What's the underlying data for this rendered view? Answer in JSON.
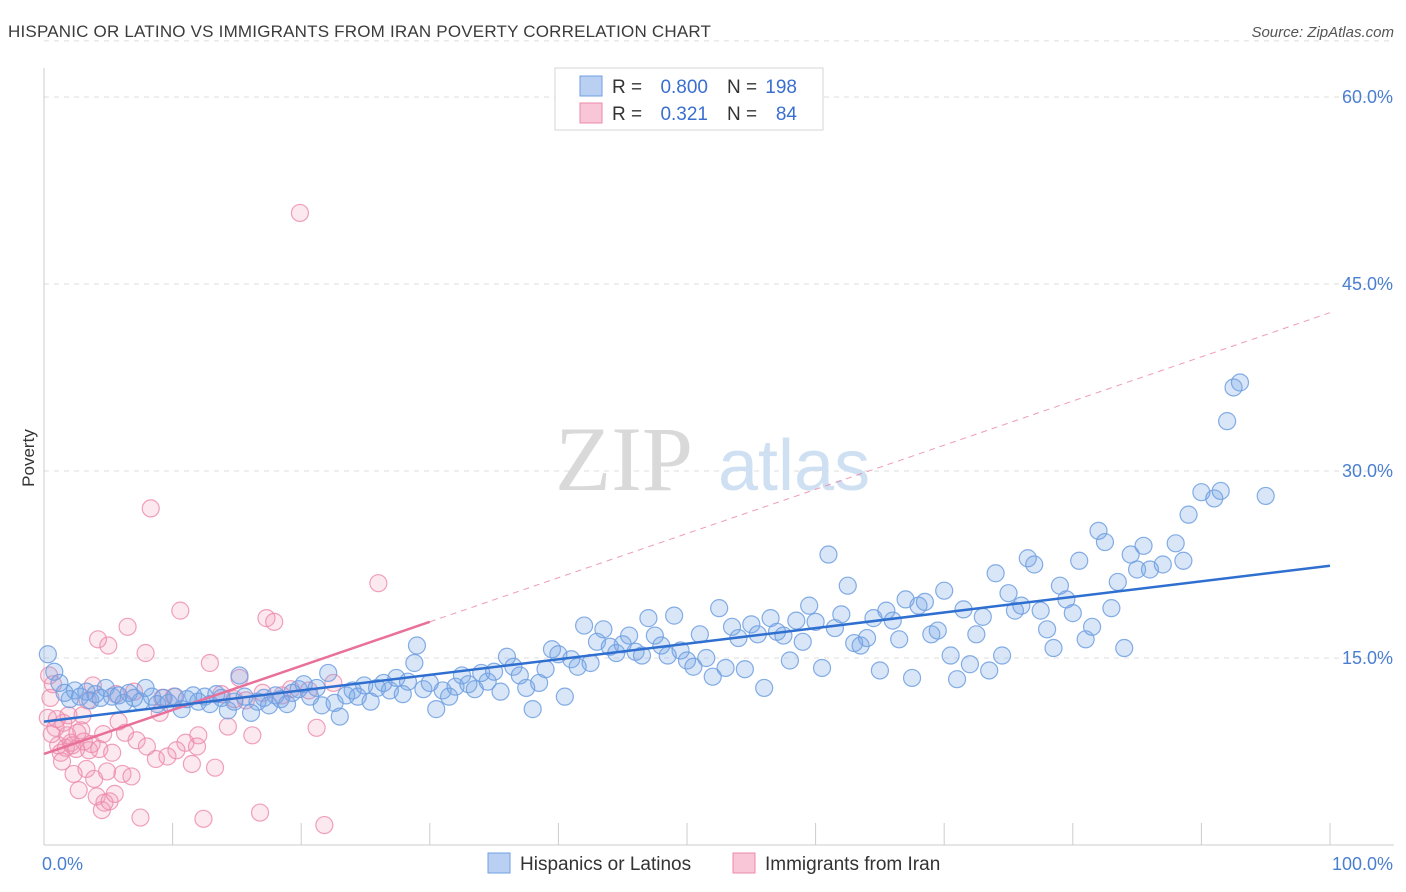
{
  "title": "HISPANIC OR LATINO VS IMMIGRANTS FROM IRAN POVERTY CORRELATION CHART",
  "source": "Source: ZipAtlas.com",
  "watermark": {
    "zip": "ZIP",
    "atlas": "atlas"
  },
  "colors": {
    "blue": "#6f9fe0",
    "blue_fill": "rgba(120,165,230,0.28)",
    "blue_line": "#2f6fd0",
    "pink": "#ec8aaa",
    "pink_fill": "rgba(240,150,180,0.22)",
    "pink_line": "#e8709a",
    "grid": "#dedede",
    "tick_text": "#4a7fd0"
  },
  "legend": {
    "rows": [
      {
        "r_label": "R =",
        "r_value": "0.800",
        "n_label": "N =",
        "n_value": "198",
        "color": "blue"
      },
      {
        "r_label": "R =",
        "r_value": "0.321",
        "n_label": "N =",
        "n_value": "84",
        "color": "pink"
      }
    ]
  },
  "chart_data": {
    "type": "scatter",
    "title": "HISPANIC OR LATINO VS IMMIGRANTS FROM IRAN POVERTY CORRELATION CHART",
    "xlabel": "",
    "ylabel": "Poverty",
    "xlim": [
      0,
      100
    ],
    "ylim": [
      0,
      65
    ],
    "x_tick_labels": [
      "0.0%",
      "100.0%"
    ],
    "y_ticks": [
      15,
      30,
      45,
      60
    ],
    "y_tick_labels": [
      "15.0%",
      "30.0%",
      "45.0%",
      "60.0%"
    ],
    "grid": true,
    "legend_position": "top-center",
    "series": [
      {
        "name": "Hispanics or Latinos",
        "color": "blue",
        "trend": {
          "x": [
            0,
            100
          ],
          "y": [
            9.9,
            22.4
          ],
          "style": "solid"
        },
        "points": [
          [
            0.3,
            15.3
          ],
          [
            0.8,
            13.9
          ],
          [
            1.2,
            13.0
          ],
          [
            1.6,
            12.2
          ],
          [
            2.0,
            11.7
          ],
          [
            2.4,
            12.4
          ],
          [
            2.8,
            11.9
          ],
          [
            3.3,
            12.3
          ],
          [
            3.6,
            11.6
          ],
          [
            4.0,
            12.1
          ],
          [
            4.4,
            11.8
          ],
          [
            4.8,
            12.6
          ],
          [
            5.3,
            11.9
          ],
          [
            5.8,
            12.0
          ],
          [
            6.2,
            11.4
          ],
          [
            6.6,
            12.2
          ],
          [
            7.0,
            11.8
          ],
          [
            7.5,
            11.5
          ],
          [
            7.9,
            12.6
          ],
          [
            8.4,
            11.9
          ],
          [
            8.8,
            11.3
          ],
          [
            9.3,
            11.8
          ],
          [
            9.7,
            11.4
          ],
          [
            10.2,
            11.9
          ],
          [
            10.7,
            10.9
          ],
          [
            11.1,
            11.7
          ],
          [
            11.6,
            12.0
          ],
          [
            12.0,
            11.5
          ],
          [
            12.5,
            11.9
          ],
          [
            12.9,
            11.3
          ],
          [
            13.4,
            12.1
          ],
          [
            13.8,
            11.8
          ],
          [
            14.3,
            10.8
          ],
          [
            14.8,
            11.5
          ],
          [
            15.2,
            13.6
          ],
          [
            15.6,
            11.9
          ],
          [
            16.1,
            10.6
          ],
          [
            16.6,
            11.5
          ],
          [
            17.1,
            11.8
          ],
          [
            17.5,
            11.2
          ],
          [
            18.0,
            12.0
          ],
          [
            18.4,
            11.7
          ],
          [
            18.9,
            11.3
          ],
          [
            19.3,
            12.2
          ],
          [
            19.8,
            12.5
          ],
          [
            20.2,
            12.9
          ],
          [
            20.7,
            11.9
          ],
          [
            21.2,
            12.6
          ],
          [
            21.6,
            11.2
          ],
          [
            22.1,
            13.8
          ],
          [
            22.6,
            11.4
          ],
          [
            23.0,
            10.3
          ],
          [
            23.5,
            12.0
          ],
          [
            24.0,
            12.4
          ],
          [
            24.4,
            11.9
          ],
          [
            24.9,
            12.8
          ],
          [
            25.4,
            11.5
          ],
          [
            25.9,
            12.6
          ],
          [
            26.4,
            13.0
          ],
          [
            26.9,
            12.4
          ],
          [
            27.4,
            13.4
          ],
          [
            27.9,
            12.1
          ],
          [
            28.3,
            13.1
          ],
          [
            28.8,
            14.6
          ],
          [
            29.0,
            16.0
          ],
          [
            29.5,
            12.5
          ],
          [
            30.0,
            13.0
          ],
          [
            30.5,
            10.9
          ],
          [
            31.0,
            12.4
          ],
          [
            31.5,
            11.9
          ],
          [
            32.0,
            12.7
          ],
          [
            32.5,
            13.6
          ],
          [
            33.0,
            12.9
          ],
          [
            33.5,
            12.5
          ],
          [
            34.0,
            13.8
          ],
          [
            34.5,
            13.1
          ],
          [
            35.0,
            13.9
          ],
          [
            35.5,
            12.3
          ],
          [
            36.0,
            15.1
          ],
          [
            36.5,
            14.3
          ],
          [
            37.0,
            13.6
          ],
          [
            37.5,
            12.6
          ],
          [
            38.0,
            10.9
          ],
          [
            38.5,
            13.0
          ],
          [
            39.0,
            14.1
          ],
          [
            39.5,
            15.7
          ],
          [
            40.0,
            15.3
          ],
          [
            40.5,
            11.9
          ],
          [
            41.0,
            14.9
          ],
          [
            41.5,
            14.3
          ],
          [
            42.0,
            17.6
          ],
          [
            42.5,
            14.6
          ],
          [
            43.0,
            16.3
          ],
          [
            43.5,
            17.3
          ],
          [
            44.0,
            15.9
          ],
          [
            44.5,
            15.4
          ],
          [
            45.0,
            16.1
          ],
          [
            45.5,
            16.8
          ],
          [
            46.0,
            15.5
          ],
          [
            46.5,
            15.2
          ],
          [
            47.0,
            18.2
          ],
          [
            47.5,
            16.8
          ],
          [
            48.0,
            16.0
          ],
          [
            48.5,
            15.2
          ],
          [
            49.0,
            18.4
          ],
          [
            49.5,
            15.6
          ],
          [
            50.0,
            14.8
          ],
          [
            50.5,
            14.3
          ],
          [
            51.0,
            16.9
          ],
          [
            51.5,
            15.0
          ],
          [
            52.0,
            13.5
          ],
          [
            52.5,
            19.0
          ],
          [
            53.0,
            14.2
          ],
          [
            53.5,
            17.5
          ],
          [
            54.0,
            16.6
          ],
          [
            54.5,
            14.1
          ],
          [
            55.0,
            17.7
          ],
          [
            55.5,
            16.9
          ],
          [
            56.0,
            12.6
          ],
          [
            56.5,
            18.2
          ],
          [
            57.0,
            17.1
          ],
          [
            57.5,
            16.8
          ],
          [
            58.0,
            14.8
          ],
          [
            58.5,
            18.0
          ],
          [
            59.0,
            16.3
          ],
          [
            59.5,
            19.2
          ],
          [
            60.0,
            17.9
          ],
          [
            60.5,
            14.2
          ],
          [
            61.0,
            23.3
          ],
          [
            61.5,
            17.4
          ],
          [
            62.0,
            18.5
          ],
          [
            62.5,
            20.8
          ],
          [
            63.0,
            16.2
          ],
          [
            63.5,
            16.0
          ],
          [
            64.0,
            16.6
          ],
          [
            64.5,
            18.2
          ],
          [
            65.0,
            14.0
          ],
          [
            65.5,
            18.8
          ],
          [
            66.0,
            18.0
          ],
          [
            66.5,
            16.5
          ],
          [
            67.0,
            19.7
          ],
          [
            67.5,
            13.4
          ],
          [
            68.0,
            19.2
          ],
          [
            68.5,
            19.5
          ],
          [
            69.0,
            16.9
          ],
          [
            69.5,
            17.2
          ],
          [
            70.0,
            20.4
          ],
          [
            70.5,
            15.2
          ],
          [
            71.0,
            13.3
          ],
          [
            71.5,
            18.9
          ],
          [
            72.0,
            14.5
          ],
          [
            72.5,
            16.9
          ],
          [
            73.0,
            18.3
          ],
          [
            73.5,
            14.0
          ],
          [
            74.0,
            21.8
          ],
          [
            74.5,
            15.2
          ],
          [
            75.0,
            20.2
          ],
          [
            75.5,
            18.8
          ],
          [
            76.0,
            19.2
          ],
          [
            76.5,
            23.0
          ],
          [
            77.0,
            22.5
          ],
          [
            77.5,
            18.8
          ],
          [
            78.0,
            17.3
          ],
          [
            78.5,
            15.8
          ],
          [
            79.0,
            20.8
          ],
          [
            79.5,
            19.7
          ],
          [
            80.0,
            18.6
          ],
          [
            80.5,
            22.8
          ],
          [
            81.0,
            16.5
          ],
          [
            81.5,
            17.5
          ],
          [
            82.0,
            25.2
          ],
          [
            82.5,
            24.3
          ],
          [
            83.0,
            19.0
          ],
          [
            83.5,
            21.1
          ],
          [
            84.0,
            15.8
          ],
          [
            84.5,
            23.3
          ],
          [
            85.0,
            22.1
          ],
          [
            85.5,
            24.0
          ],
          [
            86.0,
            22.1
          ],
          [
            87.0,
            22.5
          ],
          [
            88.0,
            24.2
          ],
          [
            89.0,
            26.5
          ],
          [
            90.0,
            28.3
          ],
          [
            91.0,
            27.8
          ],
          [
            92.0,
            34.0
          ],
          [
            92.5,
            36.7
          ],
          [
            93.0,
            37.1
          ],
          [
            95.0,
            28.0
          ],
          [
            88.6,
            22.8
          ],
          [
            91.5,
            28.4
          ]
        ]
      },
      {
        "name": "Immigrants from Iran",
        "color": "pink",
        "trend": {
          "x": [
            0,
            30
          ],
          "y": [
            7.3,
            17.9
          ],
          "style": "solid"
        },
        "trend_extension": {
          "x": [
            30,
            100
          ],
          "y": [
            17.9,
            42.7
          ],
          "style": "dashed"
        },
        "points": [
          [
            0.3,
            10.2
          ],
          [
            0.5,
            11.8
          ],
          [
            0.7,
            12.9
          ],
          [
            0.9,
            9.4
          ],
          [
            1.1,
            8.0
          ],
          [
            1.3,
            7.4
          ],
          [
            1.5,
            9.8
          ],
          [
            1.7,
            7.8
          ],
          [
            1.9,
            10.4
          ],
          [
            2.1,
            8.2
          ],
          [
            2.3,
            5.7
          ],
          [
            2.5,
            7.7
          ],
          [
            2.7,
            4.4
          ],
          [
            2.9,
            9.2
          ],
          [
            3.1,
            8.3
          ],
          [
            3.3,
            6.1
          ],
          [
            3.5,
            7.6
          ],
          [
            3.7,
            8.1
          ],
          [
            3.9,
            5.3
          ],
          [
            4.1,
            3.9
          ],
          [
            4.3,
            7.7
          ],
          [
            4.5,
            2.8
          ],
          [
            4.7,
            3.4
          ],
          [
            4.9,
            5.9
          ],
          [
            5.1,
            3.5
          ],
          [
            5.3,
            7.4
          ],
          [
            5.5,
            4.1
          ],
          [
            5.8,
            9.9
          ],
          [
            6.1,
            5.7
          ],
          [
            6.5,
            17.5
          ],
          [
            6.8,
            5.5
          ],
          [
            7.2,
            8.4
          ],
          [
            7.5,
            2.2
          ],
          [
            7.9,
            15.4
          ],
          [
            8.3,
            27.0
          ],
          [
            8.7,
            6.9
          ],
          [
            9.2,
            11.8
          ],
          [
            9.6,
            7.1
          ],
          [
            10.1,
            11.9
          ],
          [
            10.6,
            18.8
          ],
          [
            11.0,
            8.2
          ],
          [
            11.5,
            6.5
          ],
          [
            11.9,
            7.9
          ],
          [
            12.4,
            2.1
          ],
          [
            12.9,
            14.6
          ],
          [
            13.3,
            6.2
          ],
          [
            13.8,
            12.1
          ],
          [
            14.3,
            9.5
          ],
          [
            14.8,
            11.7
          ],
          [
            15.2,
            13.4
          ],
          [
            15.7,
            11.6
          ],
          [
            16.2,
            8.8
          ],
          [
            16.8,
            2.6
          ],
          [
            17.3,
            18.2
          ],
          [
            17.9,
            17.9
          ],
          [
            18.5,
            12.0
          ],
          [
            19.2,
            12.5
          ],
          [
            19.9,
            50.7
          ],
          [
            20.6,
            12.4
          ],
          [
            21.2,
            9.4
          ],
          [
            21.8,
            1.6
          ],
          [
            22.5,
            13.0
          ],
          [
            0.4,
            13.6
          ],
          [
            0.6,
            8.9
          ],
          [
            1.0,
            10.1
          ],
          [
            1.4,
            6.7
          ],
          [
            1.8,
            8.8
          ],
          [
            2.2,
            8.0
          ],
          [
            2.6,
            9.0
          ],
          [
            3.0,
            10.4
          ],
          [
            3.4,
            11.6
          ],
          [
            3.8,
            12.8
          ],
          [
            4.2,
            16.5
          ],
          [
            4.6,
            8.9
          ],
          [
            5.0,
            16.0
          ],
          [
            5.6,
            12.1
          ],
          [
            6.3,
            9.0
          ],
          [
            7.0,
            12.3
          ],
          [
            8.0,
            7.9
          ],
          [
            9.0,
            10.6
          ],
          [
            10.3,
            7.6
          ],
          [
            12.0,
            8.8
          ],
          [
            17.0,
            12.2
          ],
          [
            26.0,
            21.0
          ]
        ]
      }
    ]
  },
  "bottom_legend": [
    {
      "label": "Hispanics or Latinos",
      "color": "blue"
    },
    {
      "label": "Immigrants from Iran",
      "color": "pink"
    }
  ]
}
